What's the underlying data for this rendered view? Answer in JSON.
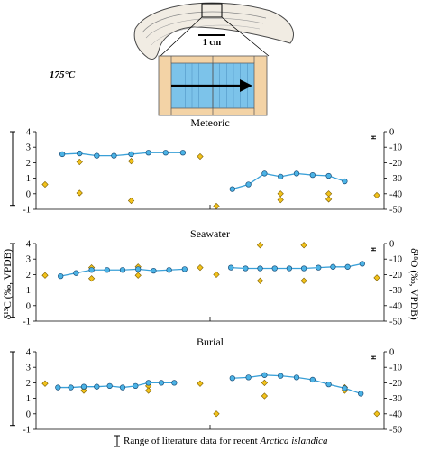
{
  "header": {
    "temperature": "175°C",
    "scale_label": "1 cm"
  },
  "axes": {
    "left_label": "δ¹³C (‰, VPDB)",
    "right_label": "δ¹⁸O (‰, VPDB)"
  },
  "footer": {
    "legend_text": "Range of literature data for recent ",
    "legend_species": "Arctica islandica"
  },
  "colors": {
    "line": "#3aa0d8",
    "marker_fill": "#4bb3e6",
    "diamond_fill": "#f2c21b",
    "shell_fill": "#f1ece3",
    "chip_fill": "#f3d3a6",
    "chip_inner": "#7cc3ea"
  },
  "chart_data": [
    {
      "type": "line",
      "title": "Meteoric",
      "carbon": {
        "ylim": [
          -0.75,
          4
        ],
        "yticks": [
          -1,
          0,
          1,
          2,
          3,
          4
        ],
        "range_bar": [
          -0.75,
          4
        ],
        "x": [
          1,
          2,
          3,
          4,
          5,
          6,
          7,
          8
        ],
        "values": [
          2.55,
          2.6,
          2.45,
          2.45,
          2.55,
          2.65,
          2.65,
          2.65
        ],
        "unheated": [
          [
            0,
            0.6
          ],
          [
            2,
            2.05
          ],
          [
            2,
            0.05
          ],
          [
            5,
            2.1
          ],
          [
            5,
            -0.45
          ],
          [
            9,
            2.4
          ]
        ]
      },
      "oxygen": {
        "ylim": [
          -50,
          0
        ],
        "yticks": [
          -50,
          -40,
          -30,
          -20,
          -10,
          0
        ],
        "range_bar": [
          -4.5,
          -3
        ],
        "x": [
          1,
          2,
          3,
          4,
          5,
          6,
          7,
          8
        ],
        "values": [
          -37,
          -34,
          -27,
          -29,
          -27,
          -28,
          -28.5,
          -32
        ],
        "unheated": [
          [
            0,
            -48
          ],
          [
            4,
            -40
          ],
          [
            4,
            -44
          ],
          [
            7,
            -40
          ],
          [
            7,
            -43.5
          ],
          [
            10,
            -41
          ]
        ]
      }
    },
    {
      "type": "line",
      "title": "Seawater",
      "carbon": {
        "ylim": [
          -0.75,
          4
        ],
        "yticks": [
          -1,
          0,
          1,
          2,
          3,
          4
        ],
        "range_bar": [
          -0.75,
          4
        ],
        "x": [
          1,
          2,
          3,
          4,
          5,
          6,
          7,
          8,
          9
        ],
        "values": [
          1.9,
          2.1,
          2.3,
          2.3,
          2.3,
          2.35,
          2.25,
          2.3,
          2.35
        ],
        "unheated": [
          [
            0,
            1.95
          ],
          [
            3,
            2.45
          ],
          [
            3,
            1.75
          ],
          [
            6,
            2.5
          ],
          [
            6,
            1.95
          ],
          [
            10,
            2.45
          ]
        ]
      },
      "oxygen": {
        "ylim": [
          -50,
          0
        ],
        "yticks": [
          -50,
          -40,
          -30,
          -20,
          -10,
          0
        ],
        "range_bar": [
          -4.5,
          -3
        ],
        "x": [
          1,
          2,
          3,
          4,
          5,
          6,
          7,
          8,
          9,
          10
        ],
        "values": [
          -15.5,
          -16,
          -16,
          -16,
          -16,
          -16,
          -15.5,
          -15,
          -15,
          -13
        ],
        "unheated": [
          [
            0,
            -20
          ],
          [
            3,
            -1
          ],
          [
            3,
            -24
          ],
          [
            6,
            -1
          ],
          [
            6,
            -24
          ],
          [
            11,
            -22
          ]
        ]
      }
    },
    {
      "type": "line",
      "title": "Burial",
      "carbon": {
        "ylim": [
          -0.75,
          4
        ],
        "yticks": [
          -1,
          0,
          1,
          2,
          3,
          4
        ],
        "range_bar": [
          -0.75,
          4
        ],
        "x": [
          1,
          2,
          3,
          4,
          5,
          6,
          7,
          8,
          9,
          10
        ],
        "values": [
          1.7,
          1.7,
          1.75,
          1.75,
          1.8,
          1.7,
          1.8,
          2.0,
          2.0,
          2.0
        ],
        "unheated": [
          [
            0,
            1.95
          ],
          [
            3,
            1.7
          ],
          [
            3,
            1.5
          ],
          [
            8,
            1.8
          ],
          [
            8,
            1.5
          ],
          [
            12,
            1.95
          ]
        ]
      },
      "oxygen": {
        "ylim": [
          -50,
          0
        ],
        "yticks": [
          -50,
          -40,
          -30,
          -20,
          -10,
          0
        ],
        "range_bar": [
          -4.5,
          -3
        ],
        "x": [
          1,
          2,
          3,
          4,
          5,
          6,
          7,
          8,
          9
        ],
        "values": [
          -17,
          -16.5,
          -15,
          -15.5,
          -16.5,
          -18,
          -21,
          -23.5,
          -27
        ],
        "unheated": [
          [
            0,
            -40
          ],
          [
            3,
            -20
          ],
          [
            3,
            -28.5
          ],
          [
            8,
            -23
          ],
          [
            8,
            -25
          ],
          [
            10,
            -40
          ]
        ]
      }
    }
  ]
}
